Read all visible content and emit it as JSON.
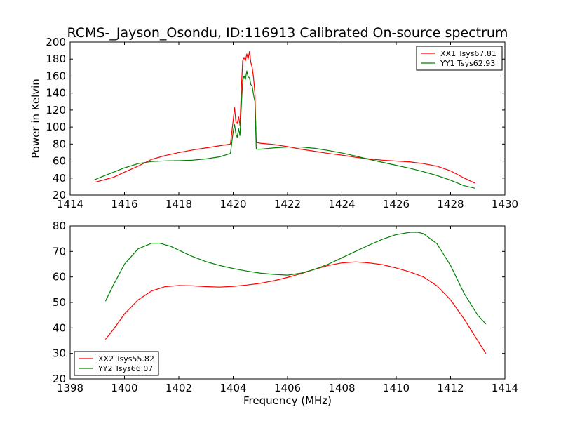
{
  "chart_data": [
    {
      "type": "line",
      "title": "RCMS-_Jayson_Osondu, ID:116913 Calibrated On-source spectrum",
      "xlabel": "",
      "ylabel": "Power in Kelvin",
      "xlim": [
        1414,
        1430
      ],
      "ylim": [
        20,
        200
      ],
      "xticks": [
        1414,
        1416,
        1418,
        1420,
        1422,
        1424,
        1426,
        1428,
        1430
      ],
      "yticks": [
        20,
        40,
        60,
        80,
        100,
        120,
        140,
        160,
        180,
        200
      ],
      "grid": false,
      "legend": "top-right",
      "series": [
        {
          "name": "XX1 Tsys67.81",
          "color": "#ff0000",
          "points": [
            [
              1414.9,
              35
            ],
            [
              1415.2,
              37.5
            ],
            [
              1415.6,
              41
            ],
            [
              1416.0,
              47
            ],
            [
              1416.5,
              54
            ],
            [
              1417.0,
              62
            ],
            [
              1417.5,
              66.5
            ],
            [
              1418.0,
              70
            ],
            [
              1418.5,
              73
            ],
            [
              1419.0,
              75.5
            ],
            [
              1419.5,
              78
            ],
            [
              1419.9,
              80
            ],
            [
              1420.0,
              108
            ],
            [
              1420.05,
              123
            ],
            [
              1420.1,
              106
            ],
            [
              1420.15,
              104
            ],
            [
              1420.2,
              112
            ],
            [
              1420.25,
              102
            ],
            [
              1420.3,
              145
            ],
            [
              1420.35,
              178
            ],
            [
              1420.4,
              182
            ],
            [
              1420.45,
              178
            ],
            [
              1420.5,
              186
            ],
            [
              1420.55,
              180
            ],
            [
              1420.6,
              189
            ],
            [
              1420.65,
              176
            ],
            [
              1420.7,
              170
            ],
            [
              1420.75,
              158
            ],
            [
              1420.8,
              140
            ],
            [
              1420.85,
              82
            ],
            [
              1421.0,
              81
            ],
            [
              1421.5,
              79.5
            ],
            [
              1422.0,
              77
            ],
            [
              1422.5,
              74
            ],
            [
              1423.0,
              71.5
            ],
            [
              1423.5,
              69
            ],
            [
              1424.0,
              67
            ],
            [
              1424.5,
              64.5
            ],
            [
              1425.0,
              62.5
            ],
            [
              1425.5,
              61
            ],
            [
              1426.0,
              60
            ],
            [
              1426.5,
              59
            ],
            [
              1427.0,
              57
            ],
            [
              1427.5,
              54
            ],
            [
              1428.0,
              48.5
            ],
            [
              1428.5,
              40
            ],
            [
              1428.9,
              34
            ]
          ]
        },
        {
          "name": "YY1 Tsys62.93",
          "color": "#008000",
          "points": [
            [
              1414.9,
              38
            ],
            [
              1415.2,
              42
            ],
            [
              1415.6,
              47
            ],
            [
              1416.0,
              52
            ],
            [
              1416.5,
              57
            ],
            [
              1417.0,
              59.5
            ],
            [
              1417.5,
              60.2
            ],
            [
              1418.0,
              60.5
            ],
            [
              1418.5,
              61
            ],
            [
              1419.0,
              62.5
            ],
            [
              1419.5,
              65
            ],
            [
              1419.9,
              69
            ],
            [
              1420.0,
              95
            ],
            [
              1420.05,
              103
            ],
            [
              1420.1,
              92
            ],
            [
              1420.15,
              88
            ],
            [
              1420.2,
              98
            ],
            [
              1420.25,
              90
            ],
            [
              1420.3,
              125
            ],
            [
              1420.35,
              155
            ],
            [
              1420.4,
              160
            ],
            [
              1420.45,
              156
            ],
            [
              1420.5,
              166
            ],
            [
              1420.55,
              159
            ],
            [
              1420.6,
              158
            ],
            [
              1420.65,
              150
            ],
            [
              1420.7,
              148
            ],
            [
              1420.75,
              138
            ],
            [
              1420.8,
              130
            ],
            [
              1420.85,
              74
            ],
            [
              1421.0,
              74
            ],
            [
              1421.5,
              75.5
            ],
            [
              1422.0,
              76.5
            ],
            [
              1422.5,
              76.5
            ],
            [
              1423.0,
              75
            ],
            [
              1423.5,
              72.5
            ],
            [
              1424.0,
              69.5
            ],
            [
              1424.5,
              66
            ],
            [
              1425.0,
              62
            ],
            [
              1425.5,
              58.5
            ],
            [
              1426.0,
              55
            ],
            [
              1426.5,
              51.5
            ],
            [
              1427.0,
              47.5
            ],
            [
              1427.5,
              43
            ],
            [
              1428.0,
              37.5
            ],
            [
              1428.5,
              31
            ],
            [
              1428.9,
              28
            ]
          ]
        }
      ]
    },
    {
      "type": "line",
      "title": "",
      "xlabel": "Frequency (MHz)",
      "ylabel": "",
      "xlim": [
        1398,
        1414
      ],
      "ylim": [
        20,
        80
      ],
      "xticks": [
        1398,
        1400,
        1402,
        1404,
        1406,
        1408,
        1410,
        1412,
        1414
      ],
      "yticks": [
        20,
        30,
        40,
        50,
        60,
        70,
        80
      ],
      "grid": false,
      "legend": "bottom-left",
      "series": [
        {
          "name": "XX2 Tsys55.82",
          "color": "#ff0000",
          "points": [
            [
              1399.3,
              35.5
            ],
            [
              1399.6,
              39.5
            ],
            [
              1400.0,
              45.5
            ],
            [
              1400.5,
              51
            ],
            [
              1401.0,
              54.5
            ],
            [
              1401.5,
              56.2
            ],
            [
              1402.0,
              56.6
            ],
            [
              1402.5,
              56.5
            ],
            [
              1403.0,
              56.2
            ],
            [
              1403.5,
              56
            ],
            [
              1404.0,
              56.3
            ],
            [
              1404.5,
              56.8
            ],
            [
              1405.0,
              57.5
            ],
            [
              1405.5,
              58.5
            ],
            [
              1406.0,
              59.8
            ],
            [
              1406.5,
              61.3
            ],
            [
              1407.0,
              63
            ],
            [
              1407.5,
              64.5
            ],
            [
              1408.0,
              65.5
            ],
            [
              1408.5,
              65.9
            ],
            [
              1409.0,
              65.5
            ],
            [
              1409.5,
              64.8
            ],
            [
              1410.0,
              63.5
            ],
            [
              1410.5,
              62
            ],
            [
              1411.0,
              60
            ],
            [
              1411.5,
              56.5
            ],
            [
              1412.0,
              51
            ],
            [
              1412.5,
              43.5
            ],
            [
              1413.0,
              35
            ],
            [
              1413.3,
              30
            ]
          ]
        },
        {
          "name": "YY2 Tsys66.07",
          "color": "#008000",
          "points": [
            [
              1399.3,
              50.5
            ],
            [
              1399.6,
              57
            ],
            [
              1400.0,
              65
            ],
            [
              1400.5,
              71
            ],
            [
              1401.0,
              73.2
            ],
            [
              1401.3,
              73.2
            ],
            [
              1401.7,
              72
            ],
            [
              1402.0,
              70.5
            ],
            [
              1402.5,
              68
            ],
            [
              1403.0,
              66
            ],
            [
              1403.5,
              64.5
            ],
            [
              1404.0,
              63.3
            ],
            [
              1404.5,
              62.3
            ],
            [
              1405.0,
              61.5
            ],
            [
              1405.5,
              61
            ],
            [
              1406.0,
              60.7
            ],
            [
              1406.5,
              61.5
            ],
            [
              1407.0,
              63
            ],
            [
              1407.5,
              65
            ],
            [
              1408.0,
              67.5
            ],
            [
              1408.5,
              70
            ],
            [
              1409.0,
              72.5
            ],
            [
              1409.5,
              74.8
            ],
            [
              1410.0,
              76.6
            ],
            [
              1410.5,
              77.5
            ],
            [
              1410.8,
              77.5
            ],
            [
              1411.0,
              77
            ],
            [
              1411.5,
              73
            ],
            [
              1412.0,
              64.5
            ],
            [
              1412.5,
              53.5
            ],
            [
              1413.0,
              45
            ],
            [
              1413.3,
              41.5
            ]
          ]
        }
      ]
    }
  ]
}
